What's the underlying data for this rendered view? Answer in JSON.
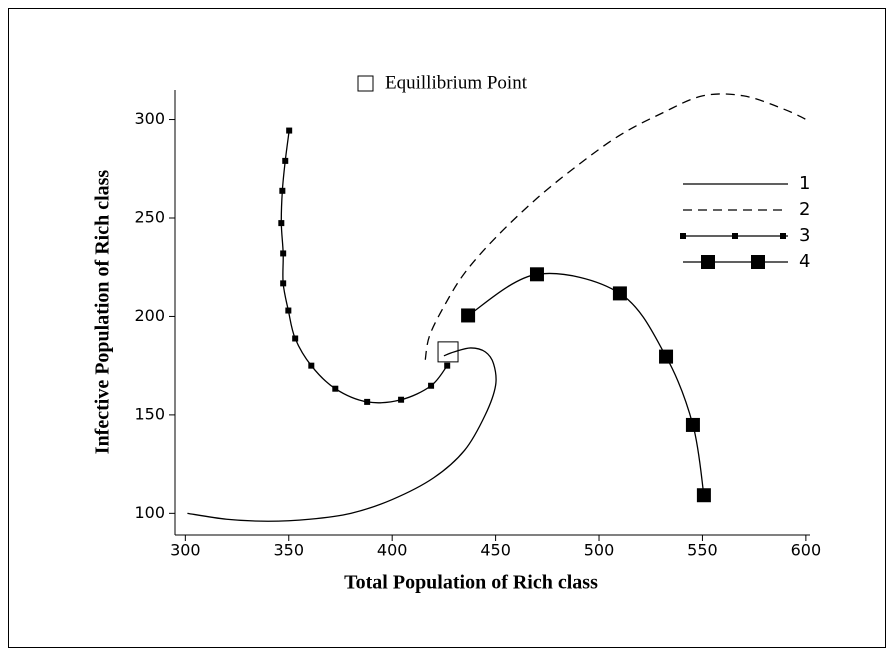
{
  "chart_data": {
    "type": "line",
    "xlabel": "Total Population of Rich class",
    "ylabel": "Infective Population of Rich class",
    "xlim": [
      295,
      602
    ],
    "ylim": [
      89,
      315
    ],
    "xticks": [
      300,
      350,
      400,
      450,
      500,
      550,
      600
    ],
    "yticks": [
      100,
      150,
      200,
      250,
      300
    ],
    "legend": "right",
    "equilibrium": {
      "name": "Equillibrium Point",
      "x": 427,
      "y": 182
    },
    "series": [
      {
        "name": "1",
        "color": "#000000",
        "line_style": "solid",
        "marker": "none",
        "x": [
          301,
          320,
          340,
          360,
          380,
          400,
          420,
          435,
          445,
          450,
          449,
          445,
          438,
          430,
          425
        ],
        "values": [
          100,
          97,
          96,
          97,
          100,
          107,
          118,
          132,
          150,
          165,
          176,
          182,
          184,
          182,
          180
        ]
      },
      {
        "name": "2",
        "color": "#000000",
        "line_style": "dashed",
        "marker": "none",
        "x": [
          416,
          418,
          425,
          435,
          450,
          470,
          490,
          510,
          530,
          550,
          570,
          590,
          602
        ],
        "values": [
          178,
          190,
          205,
          222,
          240,
          260,
          277,
          292,
          303,
          312,
          312,
          305,
          299
        ]
      },
      {
        "name": "3",
        "color": "#000000",
        "line_style": "solid",
        "marker": "small",
        "x": [
          350.2,
          348.3,
          346.9,
          346.4,
          347.3,
          347.3,
          349.8,
          353.1,
          360.9,
          372.5,
          387.9,
          404.3,
          418.8,
          426.6
        ],
        "values": [
          294.4,
          279,
          263.8,
          247.4,
          232,
          216.8,
          203,
          188.8,
          175,
          163.3,
          156.6,
          157.7,
          164.8,
          175
        ]
      },
      {
        "name": "4",
        "color": "#000000",
        "line_style": "solid",
        "marker": "large",
        "x": [
          436.7,
          470,
          510.1,
          532.4,
          545.4,
          550.7
        ],
        "values": [
          200.5,
          221.4,
          211.7,
          179.6,
          144.9,
          109.2
        ]
      }
    ]
  }
}
